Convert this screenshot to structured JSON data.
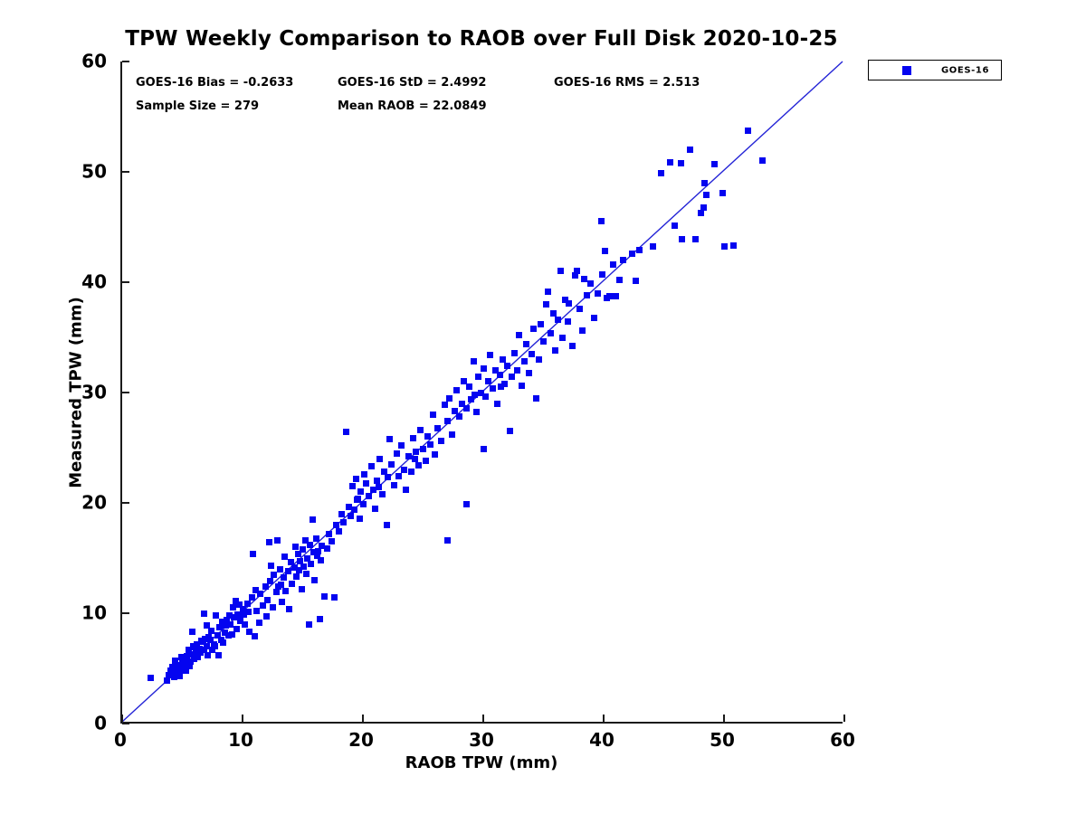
{
  "chart_data": {
    "type": "scatter",
    "title": "TPW Weekly Comparison to RAOB over Full Disk 2020-10-25",
    "xlabel": "RAOB TPW (mm)",
    "ylabel": "Measured TPW (mm)",
    "xlim": [
      0,
      60
    ],
    "ylim": [
      0,
      60
    ],
    "x_ticks": [
      0,
      10,
      20,
      30,
      40,
      50,
      60
    ],
    "y_ticks": [
      0,
      10,
      20,
      30,
      40,
      50,
      60
    ],
    "grid": false,
    "legend": {
      "position": "outside-top-right",
      "entries": [
        {
          "label": "GOES-16",
          "marker_color": "#0404f0",
          "marker": "square"
        }
      ]
    },
    "annotations": {
      "bias": "GOES-16 Bias = -0.2633",
      "std": "GOES-16 StD = 2.4992",
      "rms": "GOES-16 RMS = 2.513",
      "sample_size": "Sample Size = 279",
      "mean_raob": "Mean RAOB = 22.0849"
    },
    "identity_line": {
      "x": [
        0,
        60
      ],
      "y": [
        0,
        60
      ],
      "color": "#2323d6"
    },
    "series_name": "GOES-16",
    "marker_color": "#0404f0",
    "points": [
      [
        2.4,
        4.1
      ],
      [
        3.7,
        3.9
      ],
      [
        3.9,
        4.4
      ],
      [
        4.0,
        4.8
      ],
      [
        4.2,
        5.1
      ],
      [
        4.3,
        4.2
      ],
      [
        4.4,
        5.7
      ],
      [
        4.5,
        4.6
      ],
      [
        4.6,
        4.7
      ],
      [
        4.7,
        5.3
      ],
      [
        4.8,
        4.3
      ],
      [
        4.9,
        6.0
      ],
      [
        5.0,
        4.9
      ],
      [
        5.0,
        5.5
      ],
      [
        5.1,
        5.1
      ],
      [
        5.2,
        5.7
      ],
      [
        5.3,
        4.8
      ],
      [
        5.4,
        6.1
      ],
      [
        5.5,
        6.7
      ],
      [
        5.6,
        5.2
      ],
      [
        5.7,
        5.6
      ],
      [
        5.8,
        6.3
      ],
      [
        5.8,
        8.3
      ],
      [
        5.9,
        7.0
      ],
      [
        6.0,
        5.9
      ],
      [
        6.0,
        6.9
      ],
      [
        6.1,
        6.5
      ],
      [
        6.2,
        7.2
      ],
      [
        6.3,
        6.0
      ],
      [
        6.4,
        6.8
      ],
      [
        6.5,
        6.4
      ],
      [
        6.6,
        7.5
      ],
      [
        6.7,
        7.4
      ],
      [
        6.8,
        6.7
      ],
      [
        6.8,
        10.0
      ],
      [
        6.9,
        7.7
      ],
      [
        7.0,
        7.0
      ],
      [
        7.0,
        8.9
      ],
      [
        7.1,
        6.2
      ],
      [
        7.2,
        7.8
      ],
      [
        7.3,
        7.6
      ],
      [
        7.4,
        8.4
      ],
      [
        7.5,
        6.7
      ],
      [
        7.6,
        7.2
      ],
      [
        7.7,
        7.0
      ],
      [
        7.8,
        9.8
      ],
      [
        7.9,
        8.0
      ],
      [
        8.0,
        6.2
      ],
      [
        8.1,
        8.7
      ],
      [
        8.2,
        7.6
      ],
      [
        8.3,
        9.2
      ],
      [
        8.4,
        7.3
      ],
      [
        8.5,
        8.2
      ],
      [
        8.6,
        8.9
      ],
      [
        8.7,
        9.4
      ],
      [
        8.8,
        8.0
      ],
      [
        8.9,
        9.8
      ],
      [
        9.0,
        9.0
      ],
      [
        9.1,
        8.1
      ],
      [
        9.2,
        10.5
      ],
      [
        9.3,
        9.6
      ],
      [
        9.4,
        11.1
      ],
      [
        9.5,
        8.6
      ],
      [
        9.6,
        9.9
      ],
      [
        9.7,
        10.8
      ],
      [
        9.8,
        9.3
      ],
      [
        10.0,
        10.4
      ],
      [
        10.1,
        9.9
      ],
      [
        10.2,
        9.0
      ],
      [
        10.4,
        10.9
      ],
      [
        10.5,
        10.1
      ],
      [
        10.6,
        8.3
      ],
      [
        10.8,
        11.4
      ],
      [
        10.9,
        15.4
      ],
      [
        11.0,
        7.9
      ],
      [
        11.1,
        12.1
      ],
      [
        11.2,
        10.2
      ],
      [
        11.4,
        9.1
      ],
      [
        11.5,
        11.8
      ],
      [
        11.7,
        10.7
      ],
      [
        11.9,
        12.4
      ],
      [
        12.0,
        9.7
      ],
      [
        12.1,
        11.2
      ],
      [
        12.2,
        16.4
      ],
      [
        12.3,
        12.9
      ],
      [
        12.4,
        14.3
      ],
      [
        12.5,
        10.5
      ],
      [
        12.6,
        13.5
      ],
      [
        12.8,
        11.9
      ],
      [
        12.9,
        16.6
      ],
      [
        13.0,
        12.4
      ],
      [
        13.1,
        14.0
      ],
      [
        13.2,
        12.6
      ],
      [
        13.3,
        11.0
      ],
      [
        13.4,
        13.2
      ],
      [
        13.5,
        15.1
      ],
      [
        13.6,
        12.0
      ],
      [
        13.8,
        13.8
      ],
      [
        13.9,
        10.4
      ],
      [
        14.0,
        14.6
      ],
      [
        14.1,
        12.7
      ],
      [
        14.3,
        14.1
      ],
      [
        14.4,
        16.0
      ],
      [
        14.5,
        13.3
      ],
      [
        14.6,
        15.4
      ],
      [
        14.7,
        13.9
      ],
      [
        14.8,
        14.7
      ],
      [
        14.9,
        12.2
      ],
      [
        15.0,
        15.8
      ],
      [
        15.1,
        14.2
      ],
      [
        15.2,
        16.6
      ],
      [
        15.3,
        13.6
      ],
      [
        15.4,
        15.0
      ],
      [
        15.5,
        9.0
      ],
      [
        15.6,
        16.2
      ],
      [
        15.7,
        14.5
      ],
      [
        15.8,
        18.5
      ],
      [
        15.9,
        15.5
      ],
      [
        16.0,
        13.0
      ],
      [
        16.1,
        16.8
      ],
      [
        16.2,
        15.2
      ],
      [
        16.3,
        15.6
      ],
      [
        16.4,
        9.5
      ],
      [
        16.5,
        14.8
      ],
      [
        16.6,
        16.1
      ],
      [
        16.8,
        11.5
      ],
      [
        17.0,
        15.9
      ],
      [
        17.2,
        17.2
      ],
      [
        17.4,
        16.5
      ],
      [
        17.6,
        11.4
      ],
      [
        17.8,
        18.0
      ],
      [
        18.0,
        17.4
      ],
      [
        18.2,
        19.0
      ],
      [
        18.4,
        18.2
      ],
      [
        18.6,
        26.4
      ],
      [
        18.8,
        19.6
      ],
      [
        19.0,
        18.8
      ],
      [
        19.1,
        21.5
      ],
      [
        19.3,
        19.4
      ],
      [
        19.4,
        22.2
      ],
      [
        19.5,
        20.3
      ],
      [
        19.6,
        20.4
      ],
      [
        19.7,
        18.6
      ],
      [
        19.8,
        21.0
      ],
      [
        20.0,
        19.9
      ],
      [
        20.1,
        22.6
      ],
      [
        20.3,
        21.8
      ],
      [
        20.5,
        20.6
      ],
      [
        20.7,
        23.3
      ],
      [
        20.9,
        21.2
      ],
      [
        21.0,
        19.5
      ],
      [
        21.2,
        22.0
      ],
      [
        21.3,
        21.4
      ],
      [
        21.4,
        24.0
      ],
      [
        21.6,
        20.8
      ],
      [
        21.8,
        22.8
      ],
      [
        22.0,
        18.0
      ],
      [
        22.1,
        22.3
      ],
      [
        22.2,
        25.8
      ],
      [
        22.4,
        23.5
      ],
      [
        22.6,
        21.6
      ],
      [
        22.8,
        24.5
      ],
      [
        23.0,
        22.4
      ],
      [
        23.2,
        25.2
      ],
      [
        23.4,
        23.0
      ],
      [
        23.6,
        21.2
      ],
      [
        23.8,
        24.2
      ],
      [
        24.0,
        22.8
      ],
      [
        24.2,
        25.9
      ],
      [
        24.3,
        24.0
      ],
      [
        24.4,
        24.6
      ],
      [
        24.6,
        23.4
      ],
      [
        24.8,
        26.6
      ],
      [
        25.0,
        24.9
      ],
      [
        25.2,
        23.8
      ],
      [
        25.4,
        26.0
      ],
      [
        25.6,
        25.3
      ],
      [
        25.8,
        28.0
      ],
      [
        26.0,
        24.4
      ],
      [
        26.2,
        26.8
      ],
      [
        26.5,
        25.6
      ],
      [
        26.8,
        28.9
      ],
      [
        27.0,
        16.6
      ],
      [
        27.0,
        27.4
      ],
      [
        27.2,
        29.5
      ],
      [
        27.4,
        26.2
      ],
      [
        27.6,
        28.3
      ],
      [
        27.8,
        30.2
      ],
      [
        28.0,
        27.8
      ],
      [
        28.2,
        29.0
      ],
      [
        28.4,
        31.0
      ],
      [
        28.6,
        19.9
      ],
      [
        28.6,
        28.6
      ],
      [
        28.8,
        30.5
      ],
      [
        29.0,
        29.4
      ],
      [
        29.2,
        32.8
      ],
      [
        29.3,
        29.8
      ],
      [
        29.4,
        28.2
      ],
      [
        29.6,
        31.4
      ],
      [
        29.8,
        30.0
      ],
      [
        30.0,
        24.9
      ],
      [
        30.0,
        32.2
      ],
      [
        30.2,
        29.6
      ],
      [
        30.4,
        31.0
      ],
      [
        30.6,
        33.4
      ],
      [
        30.8,
        30.4
      ],
      [
        31.0,
        32.0
      ],
      [
        31.2,
        29.0
      ],
      [
        31.4,
        31.6
      ],
      [
        31.5,
        30.5
      ],
      [
        31.6,
        33.0
      ],
      [
        31.8,
        30.8
      ],
      [
        32.0,
        32.4
      ],
      [
        32.2,
        26.5
      ],
      [
        32.4,
        31.4
      ],
      [
        32.6,
        33.6
      ],
      [
        32.8,
        32.0
      ],
      [
        33.0,
        35.2
      ],
      [
        33.2,
        30.6
      ],
      [
        33.4,
        32.8
      ],
      [
        33.6,
        34.4
      ],
      [
        33.8,
        31.8
      ],
      [
        34.0,
        33.5
      ],
      [
        34.2,
        35.8
      ],
      [
        34.4,
        29.5
      ],
      [
        34.6,
        33.0
      ],
      [
        34.8,
        36.2
      ],
      [
        35.0,
        34.6
      ],
      [
        35.2,
        38.0
      ],
      [
        35.4,
        39.1
      ],
      [
        35.6,
        35.4
      ],
      [
        35.8,
        37.2
      ],
      [
        36.0,
        33.8
      ],
      [
        36.2,
        36.6
      ],
      [
        36.4,
        41.0
      ],
      [
        36.6,
        35.0
      ],
      [
        36.8,
        38.4
      ],
      [
        37.0,
        36.4
      ],
      [
        37.1,
        38.1
      ],
      [
        37.4,
        34.2
      ],
      [
        37.6,
        40.6
      ],
      [
        37.8,
        41.0
      ],
      [
        38.0,
        37.6
      ],
      [
        38.2,
        35.6
      ],
      [
        38.4,
        40.3
      ],
      [
        38.6,
        38.8
      ],
      [
        38.9,
        39.9
      ],
      [
        39.2,
        36.8
      ],
      [
        39.5,
        39.0
      ],
      [
        39.8,
        45.5
      ],
      [
        39.9,
        40.7
      ],
      [
        40.1,
        42.8
      ],
      [
        40.3,
        38.6
      ],
      [
        40.5,
        38.7
      ],
      [
        40.8,
        41.6
      ],
      [
        41.0,
        38.7
      ],
      [
        41.3,
        40.2
      ],
      [
        41.6,
        42.0
      ],
      [
        42.4,
        42.6
      ],
      [
        42.7,
        40.1
      ],
      [
        43.0,
        42.9
      ],
      [
        44.1,
        43.2
      ],
      [
        44.8,
        49.9
      ],
      [
        45.5,
        50.9
      ],
      [
        45.9,
        45.1
      ],
      [
        46.4,
        50.8
      ],
      [
        46.5,
        43.9
      ],
      [
        47.2,
        52.0
      ],
      [
        47.6,
        43.9
      ],
      [
        48.1,
        46.3
      ],
      [
        48.3,
        46.8
      ],
      [
        48.4,
        49.0
      ],
      [
        48.5,
        47.9
      ],
      [
        49.2,
        50.7
      ],
      [
        49.9,
        48.1
      ],
      [
        50.0,
        43.2
      ],
      [
        50.8,
        43.3
      ],
      [
        52.0,
        53.7
      ],
      [
        53.2,
        51.0
      ]
    ]
  }
}
